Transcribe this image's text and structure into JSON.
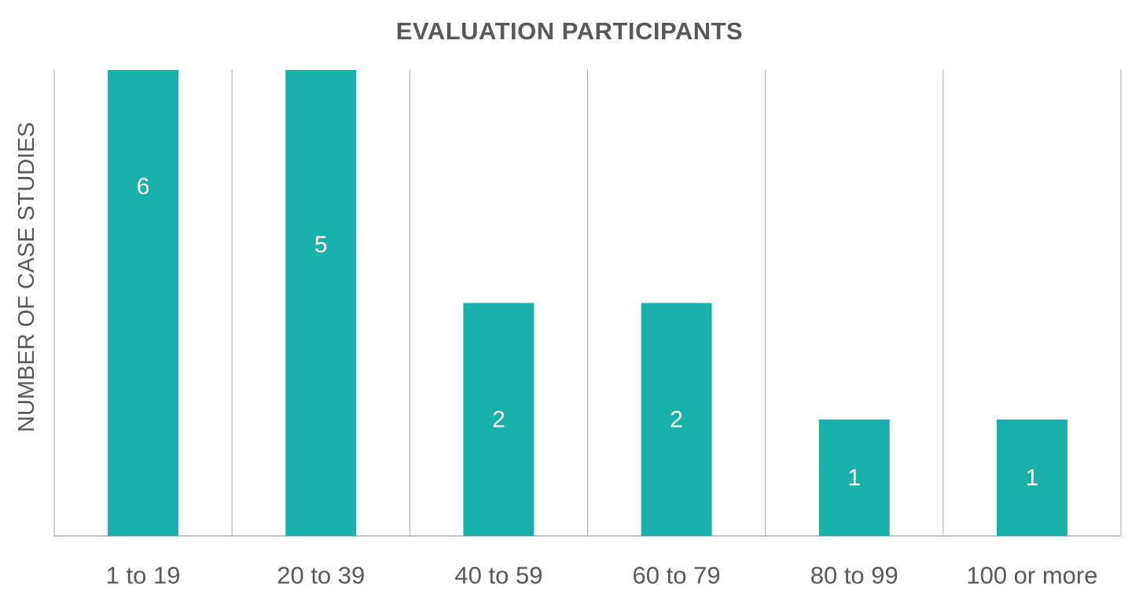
{
  "chart_data": {
    "type": "bar",
    "title": "EVALUATION PARTICIPANTS",
    "xlabel": "",
    "ylabel": "NUMBER OF CASE STUDIES",
    "categories": [
      "1 to 19",
      "20 to 39",
      "40 to 59",
      "60 to 79",
      "80 to 99",
      "100 or more"
    ],
    "values": [
      6,
      5,
      2,
      2,
      1,
      1
    ],
    "data_labels": [
      "6",
      "5",
      "2",
      "2",
      "1",
      "1"
    ],
    "ylim": [
      0,
      4
    ],
    "grid": true,
    "legend": "none",
    "colors": {
      "bar": "#1AB0AA",
      "data_label": "#FFFFFF",
      "text": "#595959",
      "grid": "#A6A6A6"
    }
  }
}
